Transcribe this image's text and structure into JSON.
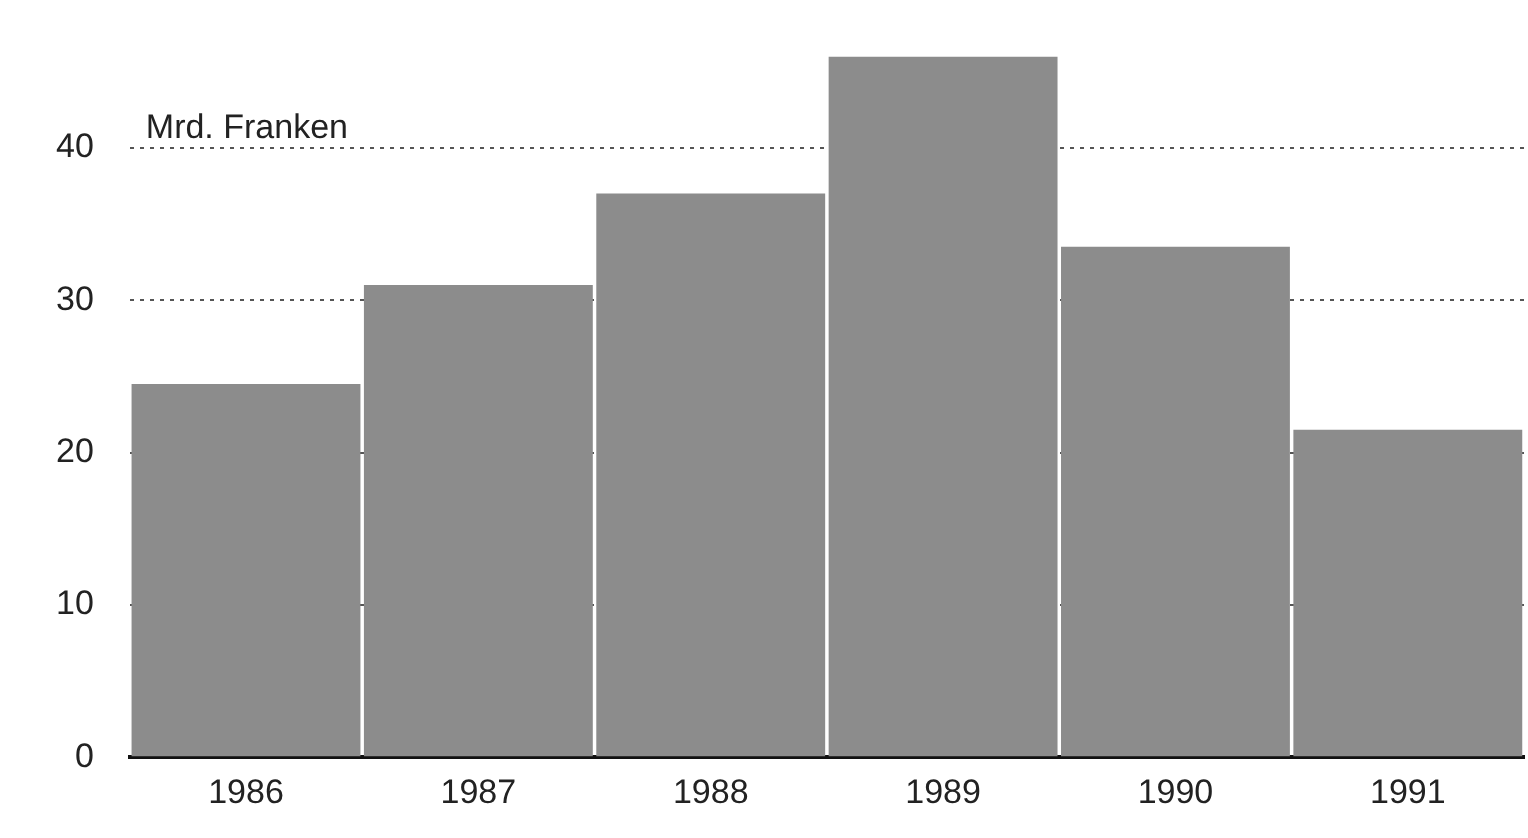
{
  "chart_data": {
    "type": "bar",
    "ylabel": "Mrd. Franken",
    "categories": [
      "1986",
      "1987",
      "1988",
      "1989",
      "1990",
      "1991"
    ],
    "values": [
      24.5,
      31,
      37,
      46,
      33.5,
      21.5
    ],
    "color": "#8c8c8c",
    "ylim": [
      0,
      46
    ],
    "yticks": [
      0,
      10,
      20,
      30,
      40
    ],
    "grid": "y"
  }
}
